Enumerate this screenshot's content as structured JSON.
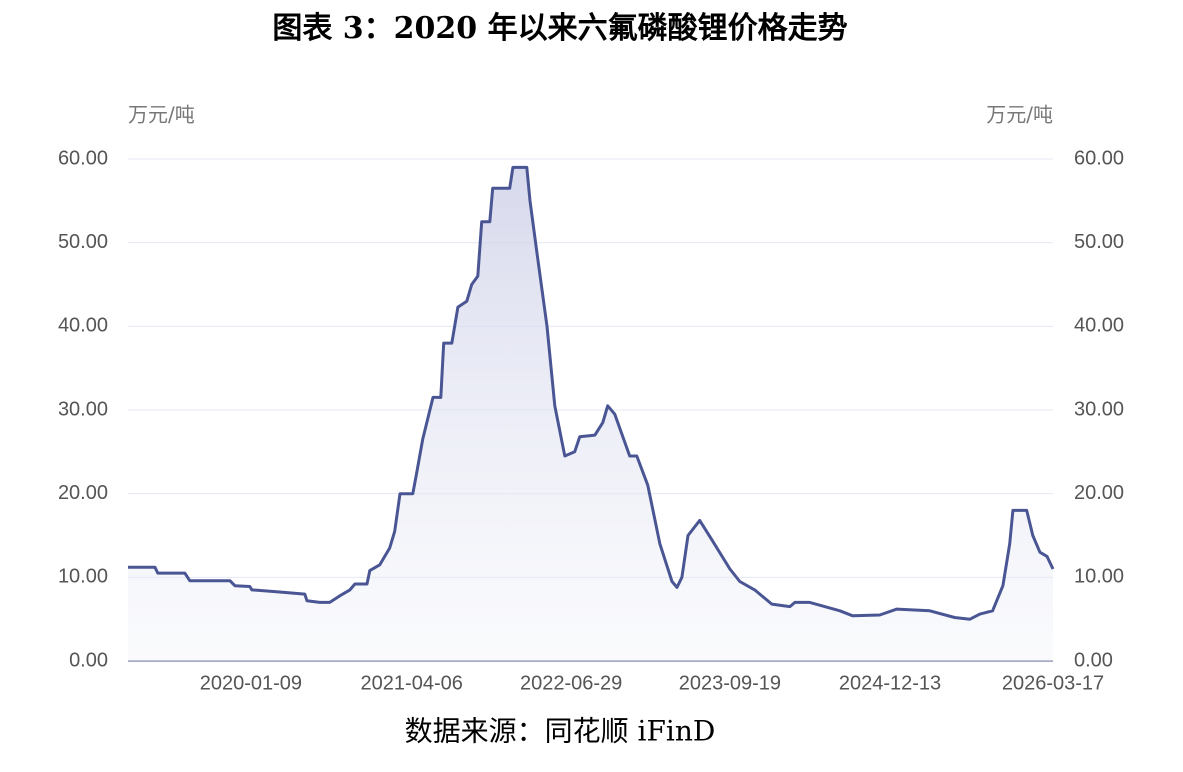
{
  "chart_data": {
    "type": "line",
    "title": "图表 3：2020 年以来六氟磷酸锂价格走势",
    "source": "数据来源：同花顺 iFinD",
    "y_label": "万元/吨",
    "y2_label": "万元/吨",
    "x": [
      "2019-01-28",
      "2019-04-14",
      "2019-04-22",
      "2019-07-07",
      "2019-07-21",
      "2019-11-11",
      "2019-11-25",
      "2020-01-06",
      "2020-01-12",
      "2020-03-17",
      "2020-06-09",
      "2020-06-15",
      "2020-07-21",
      "2020-08-18",
      "2020-09-16",
      "2020-10-14",
      "2020-10-28",
      "2020-12-01",
      "2020-12-09",
      "2021-01-06",
      "2021-02-03",
      "2021-02-17",
      "2021-03-04",
      "2021-04-09",
      "2021-04-20",
      "2021-05-07",
      "2021-06-05",
      "2021-06-27",
      "2021-07-05",
      "2021-07-28",
      "2021-08-14",
      "2021-09-08",
      "2021-09-22",
      "2021-10-09",
      "2021-10-20",
      "2021-11-12",
      "2021-11-20",
      "2022-01-07",
      "2022-01-16",
      "2022-02-24",
      "2022-03-05",
      "2022-03-24",
      "2022-04-22",
      "2022-05-14",
      "2022-05-28",
      "2022-06-11",
      "2022-07-09",
      "2022-07-23",
      "2022-09-04",
      "2022-09-26",
      "2022-10-10",
      "2022-10-30",
      "2022-12-11",
      "2022-12-31",
      "2023-01-31",
      "2023-03-06",
      "2023-04-09",
      "2023-04-23",
      "2023-05-07",
      "2023-05-24",
      "2023-06-26",
      "2023-07-30",
      "2023-09-19",
      "2023-10-17",
      "2023-11-28",
      "2024-01-15",
      "2024-03-06",
      "2024-03-20",
      "2024-05-01",
      "2024-07-25",
      "2024-08-30",
      "2024-11-14",
      "2025-01-01",
      "2025-04-04",
      "2025-06-13",
      "2025-07-26",
      "2025-08-23",
      "2025-09-28",
      "2025-10-27",
      "2025-11-15",
      "2025-11-24",
      "2026-01-02",
      "2026-01-19",
      "2026-02-08",
      "2026-02-28",
      "2026-03-17"
    ],
    "series": [
      {
        "name": "六氟磷酸锂",
        "color": "#4a5694",
        "values": [
          11.2,
          11.2,
          10.5,
          10.5,
          9.6,
          9.6,
          9.0,
          8.9,
          8.5,
          8.3,
          8.0,
          7.2,
          7.0,
          7.0,
          7.8,
          8.5,
          9.2,
          9.2,
          10.8,
          11.5,
          13.5,
          15.5,
          20.0,
          20.0,
          22.5,
          26.5,
          31.5,
          31.5,
          38.0,
          38.0,
          42.3,
          43.0,
          45.0,
          46.0,
          52.5,
          52.5,
          56.5,
          56.5,
          59.0,
          59.0,
          55.0,
          49.0,
          40.0,
          30.5,
          27.5,
          24.5,
          25.0,
          26.8,
          27.0,
          28.5,
          30.5,
          29.5,
          24.5,
          24.5,
          21.0,
          14.0,
          9.5,
          8.8,
          10.0,
          15.0,
          16.8,
          14.5,
          11.0,
          9.5,
          8.5,
          6.8,
          6.5,
          7.0,
          7.0,
          6.0,
          5.4,
          5.5,
          6.2,
          6.0,
          5.2,
          5.0,
          5.6,
          6.0,
          9.0,
          14.0,
          18.0,
          18.0,
          15.0,
          13.0,
          12.5,
          11.0
        ]
      }
    ],
    "xlim": [
      "2019-01-28",
      "2026-03-17"
    ],
    "xticks": [
      "2020-01-09",
      "2021-04-06",
      "2022-06-29",
      "2023-09-19",
      "2024-12-13",
      "2026-03-17"
    ],
    "ylim": [
      0,
      60
    ],
    "yticks": [
      {
        "value": 0,
        "label": "0.00"
      },
      {
        "value": 10,
        "label": "10.00"
      },
      {
        "value": 20,
        "label": "20.00"
      },
      {
        "value": 30,
        "label": "30.00"
      },
      {
        "value": 40,
        "label": "40.00"
      },
      {
        "value": 50,
        "label": "50.00"
      },
      {
        "value": 60,
        "label": "60.00"
      }
    ],
    "y2lim": [
      0,
      60
    ],
    "y2ticks": [
      {
        "value": 0,
        "label": "0.00"
      },
      {
        "value": 10,
        "label": "10.00"
      },
      {
        "value": 20,
        "label": "20.00"
      },
      {
        "value": 30,
        "label": "30.00"
      },
      {
        "value": 40,
        "label": "40.00"
      },
      {
        "value": 50,
        "label": "50.00"
      },
      {
        "value": 60,
        "label": "60.00"
      }
    ],
    "grid": true
  }
}
